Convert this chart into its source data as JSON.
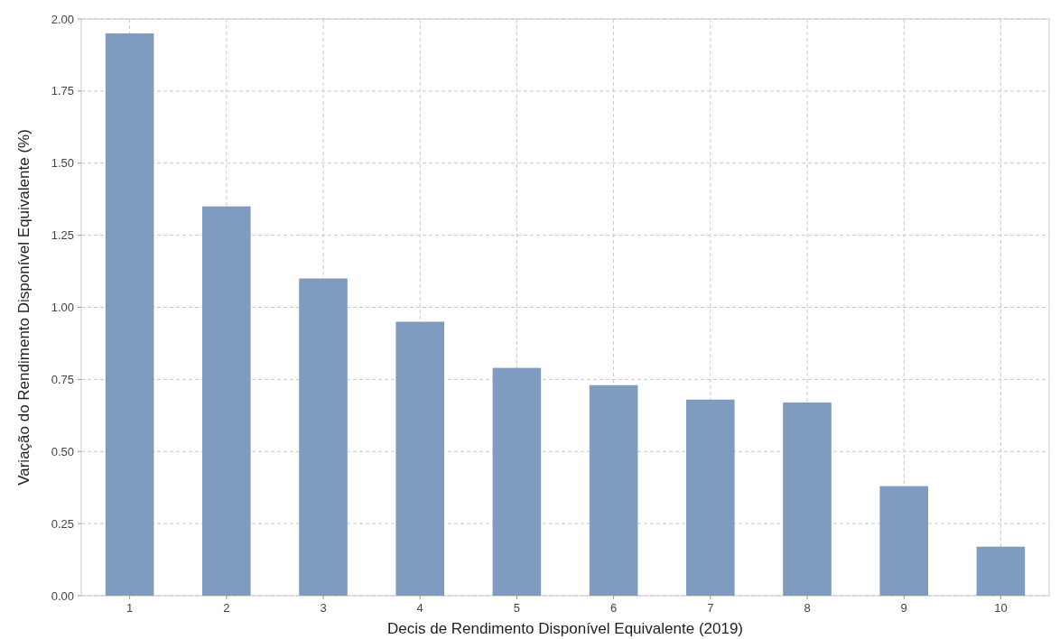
{
  "chart_data": {
    "type": "bar",
    "xlabel": "Decis de Rendimento Disponível Equivalente (2019)",
    "ylabel": "Variação do Rendimento Disponível Equivalente (%)",
    "categories": [
      "1",
      "2",
      "3",
      "4",
      "5",
      "6",
      "7",
      "8",
      "9",
      "10"
    ],
    "values": [
      1.95,
      1.35,
      1.1,
      0.95,
      0.79,
      0.73,
      0.68,
      0.67,
      0.38,
      0.17
    ],
    "color": "#7f9bbf",
    "ylim": [
      0,
      2
    ],
    "yticks": [
      {
        "value": 0,
        "label": "0.00"
      },
      {
        "value": 0.25,
        "label": "0.25"
      },
      {
        "value": 0.5,
        "label": "0.50"
      },
      {
        "value": 0.75,
        "label": "0.75"
      },
      {
        "value": 1,
        "label": "1.00"
      },
      {
        "value": 1.25,
        "label": "1.25"
      },
      {
        "value": 1.5,
        "label": "1.50"
      },
      {
        "value": 1.75,
        "label": "1.75"
      },
      {
        "value": 2,
        "label": "2.00"
      }
    ],
    "grid": true
  }
}
